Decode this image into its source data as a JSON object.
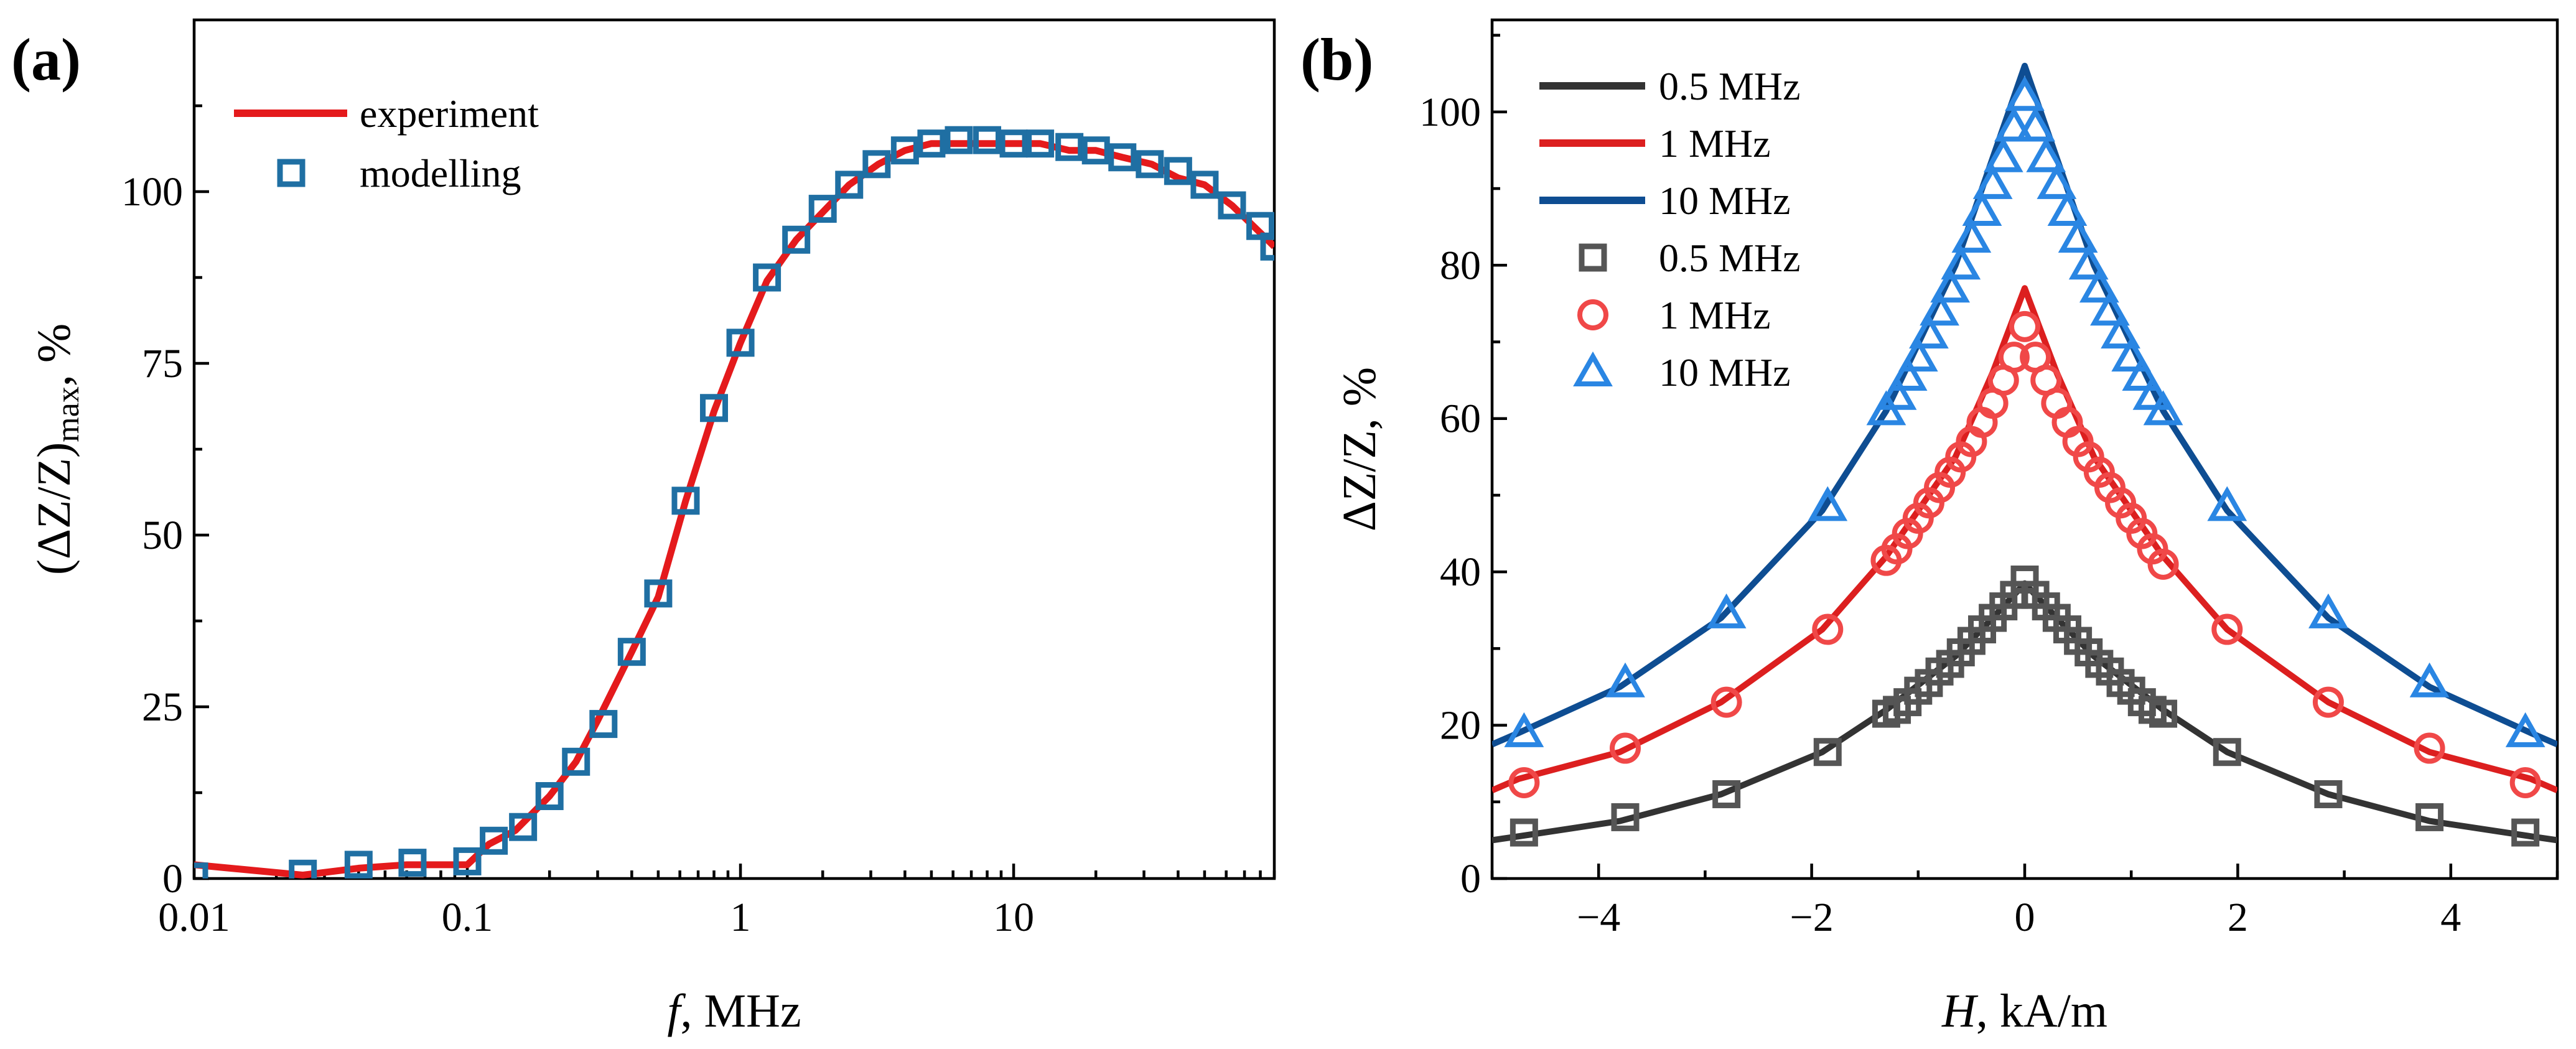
{
  "colors": {
    "experiment_red": "#e41a1c",
    "modelling_blue": "#1f6fa3",
    "black_line": "#333333",
    "gray_marker": "#555555",
    "red_line": "#dc1f1f",
    "red_marker": "#f04848",
    "navy_line": "#0e4d92",
    "blue_marker": "#2a86e3"
  },
  "chart_data": [
    {
      "panel": "(a)",
      "type": "line",
      "xscale": "log",
      "xlim": [
        0.01,
        90
      ],
      "ylim": [
        0,
        125
      ],
      "xlabel_italic": "f",
      "xlabel_rest": ", MHz",
      "ylabel_main": "(ΔZ/Z)",
      "ylabel_sub": "max",
      "ylabel_tail": ", %",
      "xticks": [
        {
          "value": 0.01,
          "label": "0.01"
        },
        {
          "value": 0.1,
          "label": "0.1"
        },
        {
          "value": 1,
          "label": "1"
        },
        {
          "value": 10,
          "label": "10"
        }
      ],
      "yticks": [
        {
          "value": 0,
          "label": "0"
        },
        {
          "value": 25,
          "label": "25"
        },
        {
          "value": 50,
          "label": "50"
        },
        {
          "value": 75,
          "label": "75"
        },
        {
          "value": 100,
          "label": "100"
        }
      ],
      "legend": [
        {
          "label": "experiment",
          "style": "line"
        },
        {
          "label": "modelling",
          "style": "square"
        }
      ],
      "series": [
        {
          "name": "experiment",
          "style": "line",
          "x": [
            0.01,
            0.025,
            0.04,
            0.06,
            0.1,
            0.12,
            0.15,
            0.2,
            0.25,
            0.3,
            0.4,
            0.5,
            0.63,
            0.8,
            1.0,
            1.25,
            1.6,
            2.0,
            2.5,
            3.2,
            4.0,
            5.0,
            6.3,
            8.0,
            10,
            12.5,
            16,
            20,
            25,
            32,
            40,
            50,
            63,
            80,
            90
          ],
          "y": [
            2,
            0.5,
            1.5,
            2,
            2,
            5,
            7,
            12,
            17,
            23,
            33,
            41,
            55,
            68,
            78,
            87,
            93,
            97,
            101,
            104,
            106,
            107,
            107,
            107,
            107,
            107,
            106,
            106,
            105,
            104,
            102,
            101,
            98,
            94,
            92
          ]
        },
        {
          "name": "modelling",
          "style": "square",
          "x": [
            0.01,
            0.025,
            0.04,
            0.063,
            0.1,
            0.125,
            0.16,
            0.2,
            0.25,
            0.315,
            0.4,
            0.5,
            0.63,
            0.8,
            1.0,
            1.25,
            1.6,
            2.0,
            2.5,
            3.15,
            4.0,
            5.0,
            6.3,
            8.0,
            10,
            12.5,
            16,
            20,
            25,
            31.5,
            40,
            50,
            63,
            80,
            90
          ],
          "y": [
            0.3,
            0.7,
            2,
            2.3,
            2.5,
            5.5,
            7.5,
            12,
            17,
            22.5,
            33,
            41.5,
            55,
            68.5,
            78,
            87.5,
            93,
            97.5,
            101,
            104,
            106,
            107,
            107.5,
            107.5,
            107,
            107,
            106.5,
            106,
            105,
            104,
            103,
            101,
            98,
            95,
            92
          ]
        }
      ]
    },
    {
      "panel": "(b)",
      "type": "line",
      "xlim": [
        -5,
        5
      ],
      "ylim": [
        0,
        112
      ],
      "xlabel_italic": "H",
      "xlabel_rest": ", kA/m",
      "ylabel": "ΔZ/Z, %",
      "xticks": [
        {
          "value": -4,
          "label": "−4"
        },
        {
          "value": -2,
          "label": "−2"
        },
        {
          "value": 0,
          "label": "0"
        },
        {
          "value": 2,
          "label": "2"
        },
        {
          "value": 4,
          "label": "4"
        }
      ],
      "yticks": [
        {
          "value": 0,
          "label": "0"
        },
        {
          "value": 20,
          "label": "20"
        },
        {
          "value": 40,
          "label": "40"
        },
        {
          "value": 60,
          "label": "60"
        },
        {
          "value": 80,
          "label": "80"
        },
        {
          "value": 100,
          "label": "100"
        }
      ],
      "legend": [
        {
          "label": "0.5 MHz",
          "style": "line",
          "color": "#333333"
        },
        {
          "label": "1 MHz",
          "style": "line",
          "color": "#dc1f1f"
        },
        {
          "label": "10 MHz",
          "style": "line",
          "color": "#0e4d92"
        },
        {
          "label": "0.5 MHz",
          "style": "square",
          "color": "#555555"
        },
        {
          "label": "1 MHz",
          "style": "circle",
          "color": "#f04848"
        },
        {
          "label": "10 MHz",
          "style": "triangle",
          "color": "#2a86e3"
        }
      ],
      "series": [
        {
          "name": "0.5 MHz",
          "style": "line",
          "color": "#333333",
          "x": [
            -5,
            -4.75,
            -3.8,
            -2.85,
            -1.9,
            -1.3,
            -0.65,
            -0.3,
            0,
            0.3,
            0.65,
            1.3,
            1.9,
            2.85,
            3.8,
            4.75,
            5
          ],
          "y": [
            5,
            5.5,
            7.5,
            11,
            16.5,
            22,
            29,
            34,
            38.5,
            34,
            29,
            22,
            16.5,
            11,
            7.5,
            5.5,
            5
          ]
        },
        {
          "name": "1 MHz",
          "style": "line",
          "color": "#dc1f1f",
          "x": [
            -5,
            -4.75,
            -3.8,
            -2.85,
            -1.9,
            -1.3,
            -0.65,
            -0.3,
            0,
            0.3,
            0.65,
            1.3,
            1.9,
            2.85,
            3.8,
            4.75,
            5
          ],
          "y": [
            11.5,
            13,
            16.5,
            23,
            32.5,
            42,
            55,
            66,
            77,
            66,
            55,
            42,
            32.5,
            23,
            16.5,
            13,
            11.5
          ]
        },
        {
          "name": "10 MHz",
          "style": "line",
          "color": "#0e4d92",
          "x": [
            -5,
            -4.75,
            -3.8,
            -2.85,
            -1.9,
            -1.3,
            -0.65,
            -0.3,
            0,
            0.3,
            0.65,
            1.3,
            1.9,
            2.85,
            3.8,
            4.75,
            5
          ],
          "y": [
            17.5,
            19,
            25,
            34,
            48,
            61,
            80,
            94,
            106,
            94,
            80,
            61,
            48,
            34,
            25,
            19,
            17.5
          ]
        },
        {
          "name": "0.5 MHz",
          "style": "square",
          "color": "#555555",
          "x": [
            -4.7,
            -3.75,
            -2.8,
            -1.85,
            -1.3,
            -1.2,
            -1.1,
            -1.0,
            -0.9,
            -0.8,
            -0.7,
            -0.6,
            -0.5,
            -0.4,
            -0.3,
            -0.2,
            -0.1,
            0,
            0.1,
            0.2,
            0.3,
            0.4,
            0.5,
            0.6,
            0.7,
            0.8,
            0.9,
            1.0,
            1.1,
            1.2,
            1.3,
            1.9,
            2.85,
            3.8,
            4.7
          ],
          "y": [
            6,
            8,
            11,
            16.5,
            21.5,
            22,
            23,
            24.5,
            25.5,
            27,
            28,
            29.5,
            31,
            32.5,
            34,
            35.5,
            37,
            39,
            37,
            35.5,
            34,
            32.5,
            31,
            29.5,
            28,
            27,
            25.5,
            24.5,
            23,
            22,
            21.5,
            16.5,
            11,
            8,
            6
          ]
        },
        {
          "name": "1 MHz",
          "style": "circle",
          "color": "#f04848",
          "x": [
            -4.7,
            -3.75,
            -2.8,
            -1.85,
            -1.3,
            -1.2,
            -1.1,
            -1.0,
            -0.9,
            -0.8,
            -0.7,
            -0.6,
            -0.5,
            -0.4,
            -0.3,
            -0.2,
            -0.1,
            0,
            0.1,
            0.2,
            0.3,
            0.4,
            0.5,
            0.6,
            0.7,
            0.8,
            0.9,
            1.0,
            1.1,
            1.2,
            1.3,
            1.9,
            2.85,
            3.8,
            4.7
          ],
          "y": [
            12.5,
            17,
            23,
            32.5,
            41.5,
            43,
            45,
            47,
            49,
            51,
            53,
            55,
            57,
            59.5,
            62,
            65,
            68,
            72,
            68,
            65,
            62,
            59.5,
            57,
            55,
            53,
            51,
            49,
            47,
            45,
            43,
            41,
            32.5,
            23,
            17,
            12.5
          ]
        },
        {
          "name": "10 MHz",
          "style": "triangle",
          "color": "#2a86e3",
          "x": [
            -4.7,
            -3.75,
            -2.8,
            -1.85,
            -1.3,
            -1.2,
            -1.1,
            -1.0,
            -0.9,
            -0.8,
            -0.7,
            -0.6,
            -0.5,
            -0.4,
            -0.3,
            -0.2,
            -0.1,
            0,
            0.1,
            0.2,
            0.3,
            0.4,
            0.5,
            0.6,
            0.7,
            0.8,
            0.9,
            1.0,
            1.1,
            1.2,
            1.3,
            1.9,
            2.85,
            3.8,
            4.7
          ],
          "y": [
            19,
            25.5,
            34.5,
            48.5,
            61,
            63,
            65.5,
            68,
            71,
            74,
            77,
            80,
            83.5,
            87,
            90.5,
            94,
            98,
            102,
            98,
            94,
            90.5,
            87,
            83.5,
            80,
            77,
            74,
            71,
            68,
            65.5,
            63,
            61,
            48.5,
            34.5,
            25.5,
            19
          ]
        }
      ]
    }
  ]
}
